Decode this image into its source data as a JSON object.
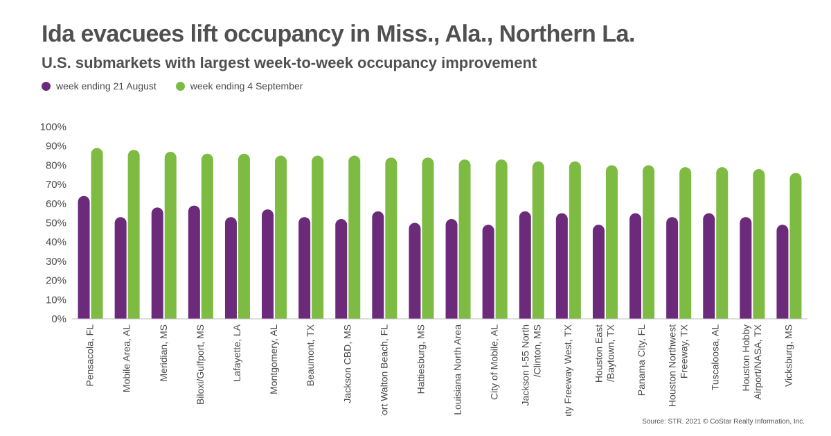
{
  "header": {
    "title": "Ida evacuees lift occupancy in Miss., Ala., Northern La.",
    "subtitle": "U.S. submarkets with largest week-to-week occupancy improvement"
  },
  "legend": {
    "items": [
      {
        "label": "week ending 21 August",
        "color": "#6b2a7a"
      },
      {
        "label": "week ending 4 September",
        "color": "#7dbb42"
      }
    ]
  },
  "chart_data": {
    "type": "bar",
    "title": "Ida evacuees lift occupancy in Miss., Ala., Northern La.",
    "subtitle": "U.S. submarkets with largest week-to-week occupancy improvement",
    "xlabel": "",
    "ylabel": "",
    "ylim": [
      0,
      100
    ],
    "yticks": [
      "0%",
      "10%",
      "20%",
      "30%",
      "40%",
      "50%",
      "60%",
      "70%",
      "80%",
      "90%",
      "100%"
    ],
    "grid": false,
    "legend_position": "top-left",
    "categories": [
      [
        "Pensacola, FL"
      ],
      [
        "Mobile Area, AL"
      ],
      [
        "Meridian, MS"
      ],
      [
        "Biloxi/Gulfport, MS"
      ],
      [
        "Lafayette, LA"
      ],
      [
        "Montgomery, AL"
      ],
      [
        "Beaumont, TX"
      ],
      [
        "Jackson CBD, MS"
      ],
      [
        "Fort Walton Beach, FL"
      ],
      [
        "Hattiesburg, MS"
      ],
      [
        "Louisiana North Area"
      ],
      [
        "City of Mobile, AL"
      ],
      [
        "Jackson I-55 North",
        "/Clinton, MS"
      ],
      [
        "Katy Freeway West, TX"
      ],
      [
        "Houston East",
        "/Baytown, TX"
      ],
      [
        "Panama City, FL"
      ],
      [
        "Houston Northwest",
        "Freeway, TX"
      ],
      [
        "Tuscaloosa, AL"
      ],
      [
        "Houston Hobby",
        "Airport/NASA, TX"
      ],
      [
        "Vicksburg, MS"
      ]
    ],
    "series": [
      {
        "name": "week ending 21 August",
        "color": "#6b2a7a",
        "values": [
          64,
          53,
          58,
          59,
          53,
          57,
          53,
          52,
          56,
          50,
          52,
          49,
          56,
          55,
          49,
          55,
          53,
          55,
          53,
          49
        ]
      },
      {
        "name": "week ending 4 September",
        "color": "#7dbb42",
        "values": [
          89,
          88,
          87,
          86,
          86,
          85,
          85,
          85,
          84,
          84,
          83,
          83,
          82,
          82,
          80,
          80,
          79,
          79,
          78,
          76
        ]
      }
    ]
  },
  "footer": {
    "source": "Source: STR. 2021 © CoStar Realty Information, Inc."
  }
}
